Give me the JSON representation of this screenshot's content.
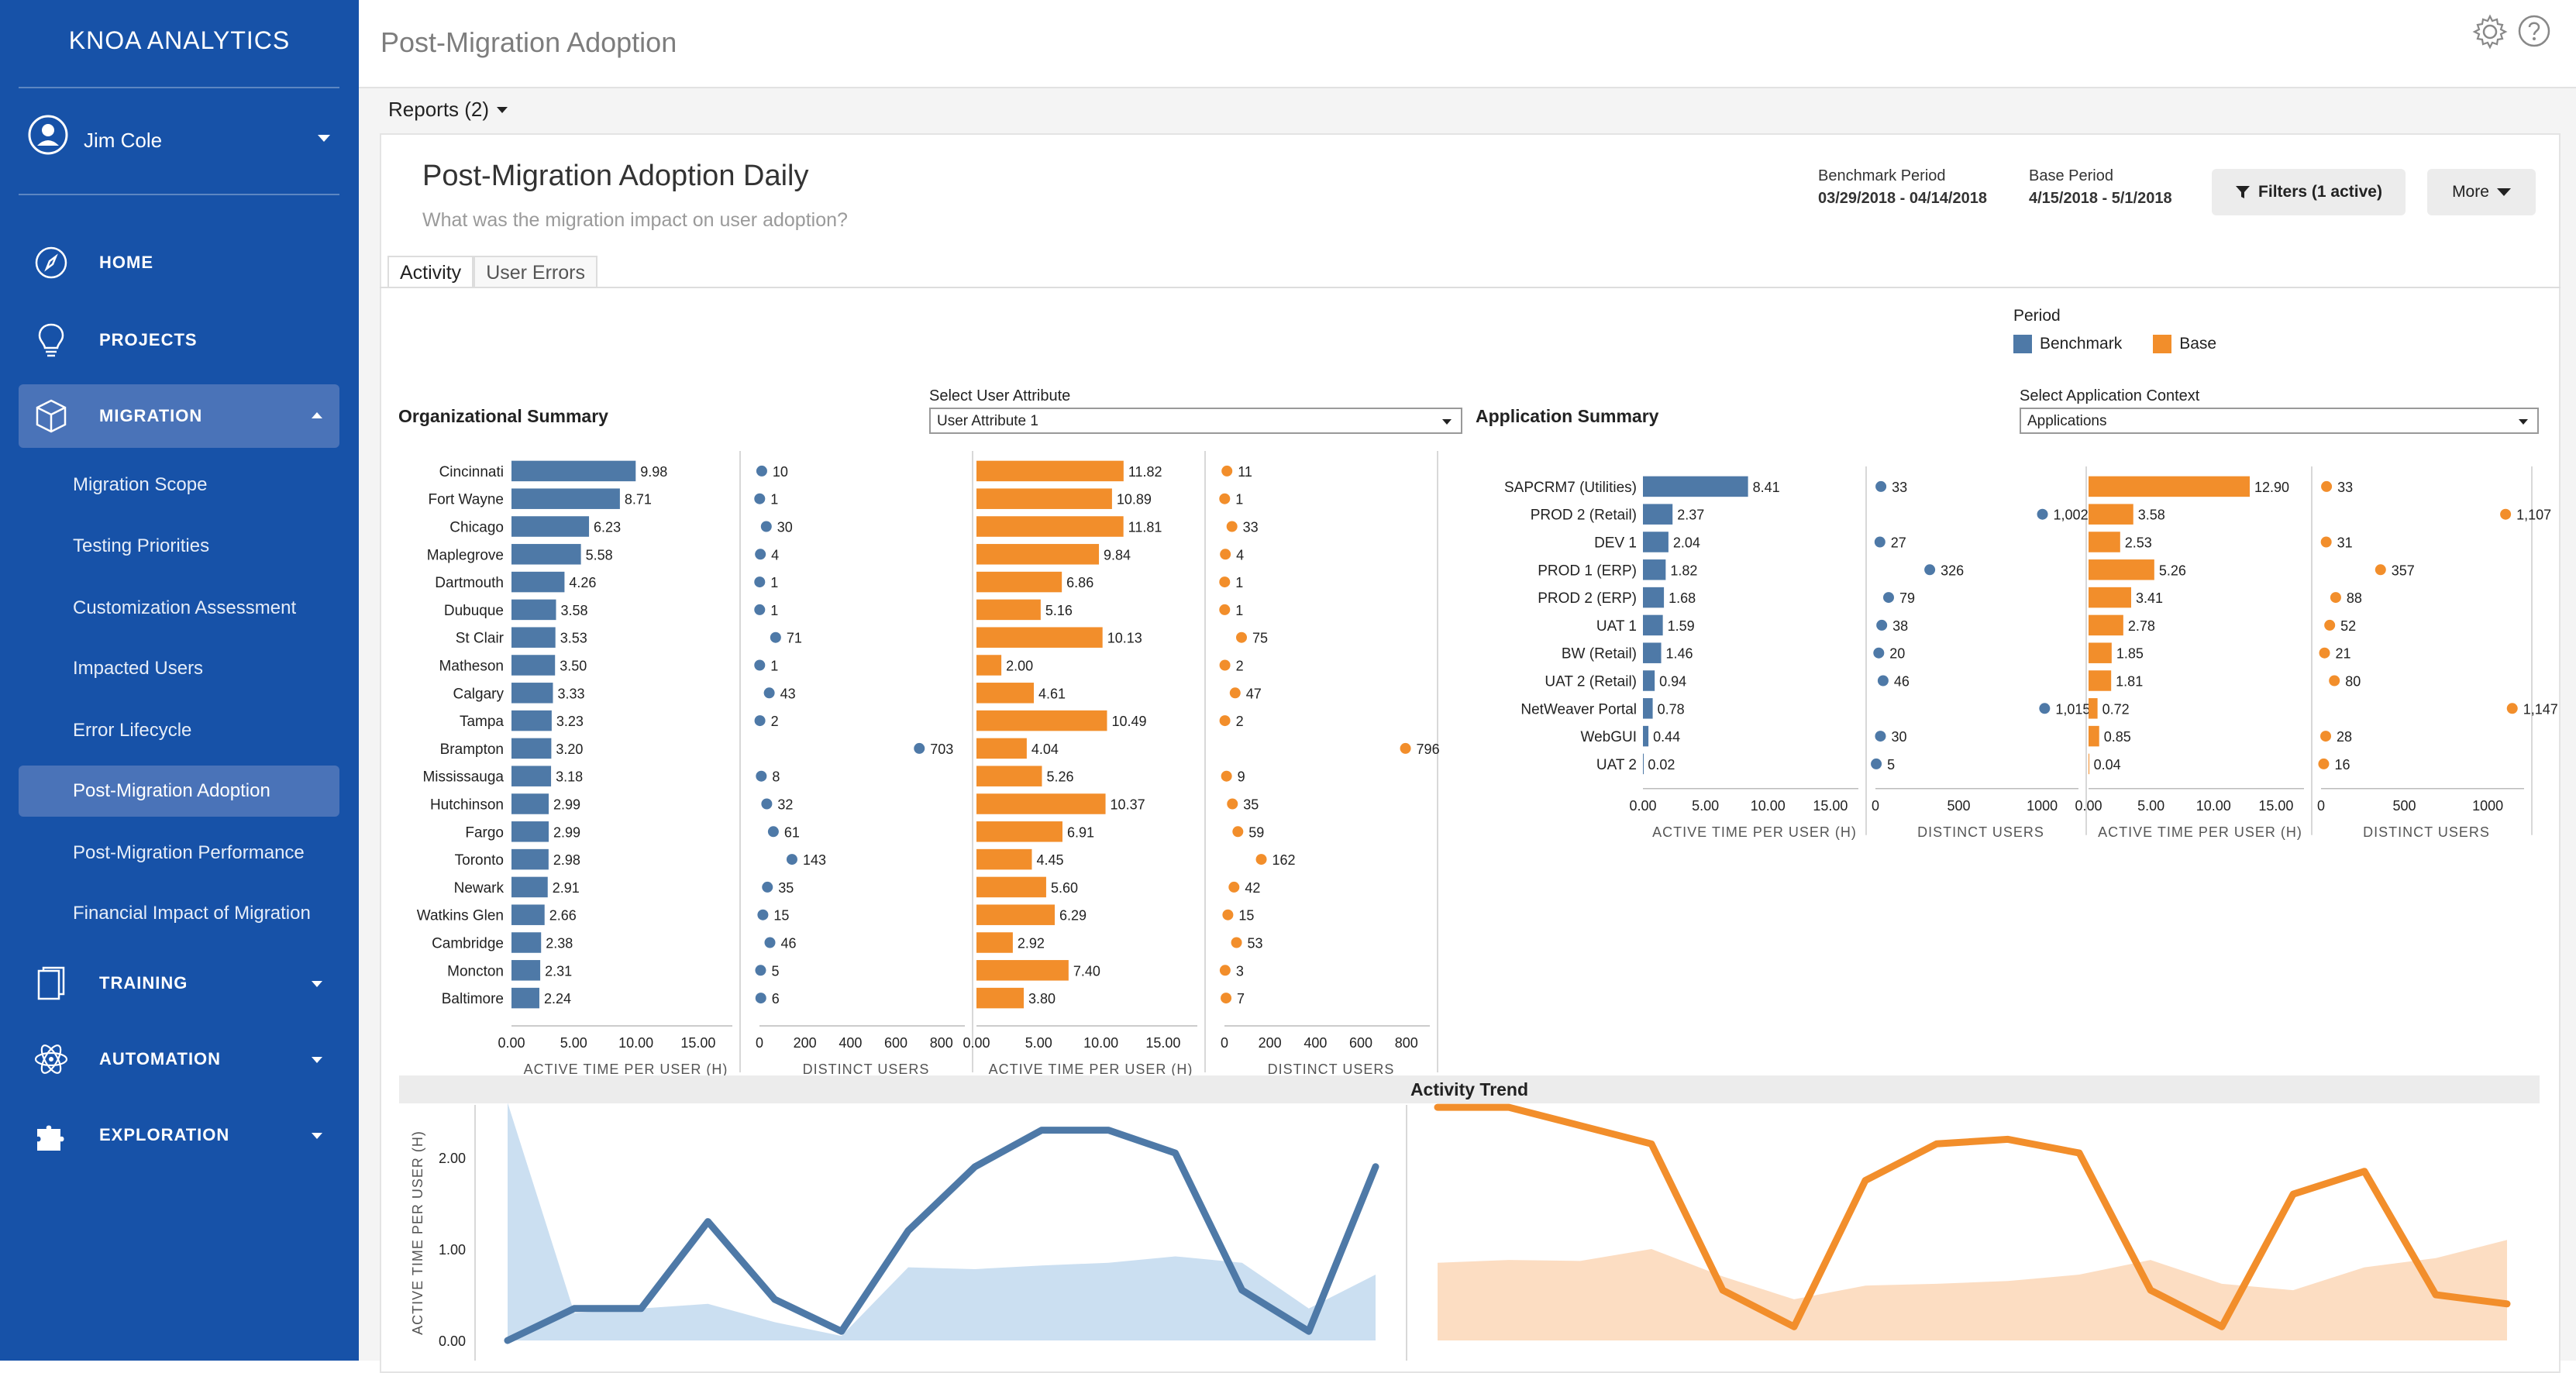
{
  "sidebar": {
    "brand": "KNOA ANALYTICS",
    "user": "Jim Cole",
    "nav": [
      {
        "label": "HOME",
        "icon": "compass-icon"
      },
      {
        "label": "PROJECTS",
        "icon": "lightbulb-icon"
      },
      {
        "label": "MIGRATION",
        "icon": "cube-icon"
      },
      {
        "label": "TRAINING",
        "icon": "clipboard-icon"
      },
      {
        "label": "AUTOMATION",
        "icon": "atom-icon"
      },
      {
        "label": "EXPLORATION",
        "icon": "puzzle-icon"
      }
    ],
    "sub": [
      "Migration Scope",
      "Testing Priorities",
      "Customization Assessment",
      "Impacted Users",
      "Error Lifecycle",
      "Post-Migration Adoption",
      "Post-Migration Performance",
      "Financial Impact of Migration"
    ]
  },
  "header": {
    "title": "Post-Migration Adoption",
    "reports": "Reports (2)"
  },
  "dashboard": {
    "title": "Post-Migration Adoption Daily",
    "subtitle": "What was the migration impact on user adoption?",
    "benchmark_label": "Benchmark Period",
    "benchmark_value": "03/29/2018 - 04/14/2018",
    "base_label": "Base Period",
    "base_value": "4/15/2018 - 5/1/2018",
    "filters": "Filters (1 active)",
    "more": "More",
    "tabs": [
      "Activity",
      "User Errors"
    ],
    "legend": {
      "title": "Period",
      "benchmark": "Benchmark",
      "base": "Base"
    }
  },
  "colors": {
    "benchmark": "#4e79a7",
    "base": "#f28e2b",
    "sidebar": "#1752a8"
  },
  "org": {
    "title": "Organizational Summary",
    "select_label": "Select User Attribute",
    "select_value": "User Attribute 1",
    "axis": [
      "ACTIVE TIME PER USER (H)",
      "DISTINCT USERS",
      "ACTIVE TIME PER USER (H)",
      "DISTINCT USERS"
    ],
    "ticks_time": [
      "0.00",
      "5.00",
      "10.00",
      "15.00"
    ],
    "ticks_users": [
      "0",
      "200",
      "400",
      "600",
      "800"
    ]
  },
  "app": {
    "title": "Application Summary",
    "select_label": "Select Application Context",
    "select_value": "Applications",
    "axis": [
      "ACTIVE TIME PER USER (H)",
      "DISTINCT USERS",
      "ACTIVE TIME PER USER (H)",
      "DISTINCT USERS"
    ],
    "ticks_time": [
      "0.00",
      "5.00",
      "10.00",
      "15.00"
    ],
    "ticks_users": [
      "0",
      "500",
      "1000"
    ]
  },
  "trend": {
    "title": "Activity Trend",
    "ylabel": "ACTIVE TIME PER USER (H)",
    "yticks": [
      "2.00",
      "1.00",
      "0.00"
    ]
  },
  "chart_data": [
    {
      "type": "bar",
      "title": "Organizational Summary",
      "categories": [
        "Cincinnati",
        "Fort Wayne",
        "Chicago",
        "Maplegrove",
        "Dartmouth",
        "Dubuque",
        "St Clair",
        "Matheson",
        "Calgary",
        "Tampa",
        "Brampton",
        "Mississauga",
        "Hutchinson",
        "Fargo",
        "Toronto",
        "Newark",
        "Watkins Glen",
        "Cambridge",
        "Moncton",
        "Baltimore"
      ],
      "series": [
        {
          "name": "Benchmark",
          "measure": "ACTIVE TIME PER USER (H)",
          "values": [
            9.98,
            8.71,
            6.23,
            5.58,
            4.26,
            3.58,
            3.53,
            3.5,
            3.33,
            3.23,
            3.2,
            3.18,
            2.99,
            2.99,
            2.98,
            2.91,
            2.66,
            2.38,
            2.31,
            2.24
          ]
        },
        {
          "name": "Benchmark",
          "measure": "DISTINCT USERS",
          "values": [
            10,
            1,
            30,
            4,
            1,
            1,
            71,
            1,
            43,
            2,
            703,
            8,
            32,
            61,
            143,
            35,
            15,
            46,
            5,
            6
          ]
        },
        {
          "name": "Base",
          "measure": "ACTIVE TIME PER USER (H)",
          "values": [
            11.82,
            10.89,
            11.81,
            9.84,
            6.86,
            5.16,
            10.13,
            2.0,
            4.61,
            10.49,
            4.04,
            5.26,
            10.37,
            6.91,
            4.45,
            5.6,
            6.29,
            2.92,
            7.4,
            3.8
          ]
        },
        {
          "name": "Base",
          "measure": "DISTINCT USERS",
          "values": [
            11,
            1,
            33,
            4,
            1,
            1,
            75,
            2,
            47,
            2,
            796,
            9,
            35,
            59,
            162,
            42,
            15,
            53,
            3,
            7
          ]
        }
      ]
    },
    {
      "type": "bar",
      "title": "Application Summary",
      "categories": [
        "SAPCRM7 (Utilities)",
        "PROD 2 (Retail)",
        "DEV 1",
        "PROD 1 (ERP)",
        "PROD 2 (ERP)",
        "UAT 1",
        "BW (Retail)",
        "UAT 2 (Retail)",
        "NetWeaver Portal",
        "WebGUI",
        "UAT 2"
      ],
      "series": [
        {
          "name": "Benchmark",
          "measure": "ACTIVE TIME PER USER (H)",
          "values": [
            8.41,
            2.37,
            2.04,
            1.82,
            1.68,
            1.59,
            1.46,
            0.94,
            0.78,
            0.44,
            0.02
          ]
        },
        {
          "name": "Benchmark",
          "measure": "DISTINCT USERS",
          "values": [
            33,
            1002,
            27,
            326,
            79,
            38,
            20,
            46,
            1015,
            30,
            5
          ]
        },
        {
          "name": "Base",
          "measure": "ACTIVE TIME PER USER (H)",
          "values": [
            12.9,
            3.58,
            2.53,
            5.26,
            3.41,
            2.78,
            1.85,
            1.81,
            0.72,
            0.85,
            0.04
          ]
        },
        {
          "name": "Base",
          "measure": "DISTINCT USERS",
          "values": [
            33,
            1107,
            31,
            357,
            88,
            52,
            21,
            80,
            1147,
            28,
            16
          ]
        }
      ]
    },
    {
      "type": "line",
      "title": "Activity Trend",
      "ylabel": "ACTIVE TIME PER USER (H)",
      "ylim": [
        0,
        2.5
      ],
      "series": [
        {
          "name": "Benchmark",
          "values": [
            0.0,
            0.35,
            0.35,
            1.3,
            0.45,
            0.1,
            1.2,
            1.9,
            2.3,
            2.3,
            2.05,
            0.55,
            0.1,
            1.9
          ]
        },
        {
          "name": "Base",
          "values": [
            2.55,
            2.55,
            2.35,
            2.15,
            0.55,
            0.15,
            1.75,
            2.15,
            2.2,
            2.05,
            0.55,
            0.15,
            1.6,
            1.85,
            0.5,
            0.4
          ]
        }
      ],
      "area": [
        {
          "name": "Benchmark",
          "values": [
            2.6,
            0.3,
            0.35,
            0.4,
            0.2,
            0.05,
            0.8,
            0.78,
            0.82,
            0.85,
            0.92,
            0.85,
            0.35,
            0.72
          ]
        },
        {
          "name": "Base",
          "values": [
            0.85,
            0.88,
            0.87,
            1.0,
            0.7,
            0.45,
            0.6,
            0.62,
            0.65,
            0.72,
            0.88,
            0.62,
            0.55,
            0.8,
            0.9,
            1.1
          ]
        }
      ]
    }
  ]
}
